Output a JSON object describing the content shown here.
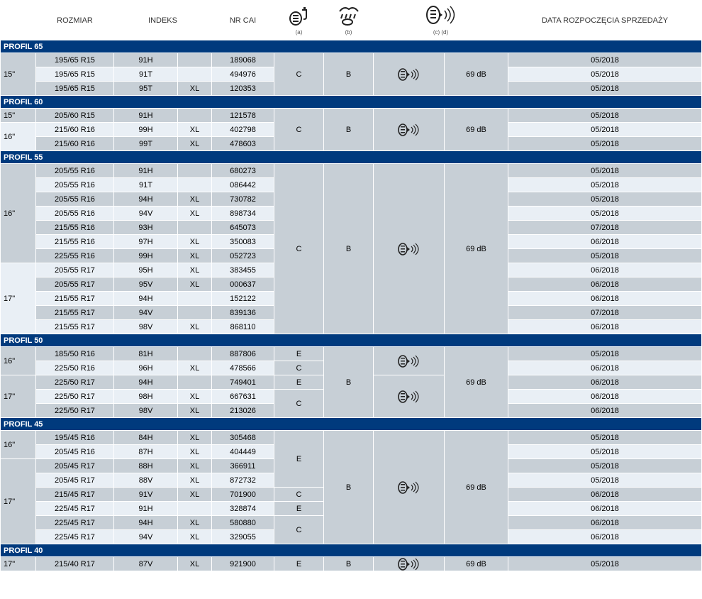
{
  "colors": {
    "section_bg": "#003a7d",
    "light_row": "#e9eff5",
    "dark_row": "#c7cfd6",
    "white": "#ffffff",
    "text": "#000000",
    "icon": "#222222"
  },
  "headers": {
    "rozmiar": "ROZMIAR",
    "indeks": "INDEKS",
    "nr_cai": "NR CAI",
    "fuel_sub": "(a)",
    "wet_sub": "(b)",
    "noise_sub": "(c) (d)",
    "data": "DATA ROZPOCZĘCIA SPRZEDAŻY"
  },
  "sections": [
    {
      "title": "PROFIL 65",
      "fuel": "C",
      "wet": "B",
      "db": "69 dB",
      "rows": [
        {
          "rim": "15\"",
          "size": "195/65 R15",
          "idx": "91H",
          "xl": "",
          "cai": "189068",
          "date": "05/2018",
          "sh": "dk",
          "newrim": true
        },
        {
          "rim": "",
          "size": "195/65 R15",
          "idx": "91T",
          "xl": "",
          "cai": "494976",
          "date": "05/2018",
          "sh": "lt"
        },
        {
          "rim": "",
          "size": "195/65 R15",
          "idx": "95T",
          "xl": "XL",
          "cai": "120353",
          "date": "05/2018",
          "sh": "dk"
        }
      ],
      "fuel_groups": [
        {
          "span": 3,
          "val": "C"
        }
      ],
      "wet_groups": [
        {
          "span": 3,
          "val": "B"
        }
      ],
      "nico_groups": [
        {
          "span": 3
        }
      ],
      "db_groups": [
        {
          "span": 3,
          "val": "69 dB"
        }
      ]
    },
    {
      "title": "PROFIL 60",
      "rows": [
        {
          "rim": "15\"",
          "size": "205/60 R15",
          "idx": "91H",
          "xl": "",
          "cai": "121578",
          "date": "05/2018",
          "sh": "dk",
          "newrim": true
        },
        {
          "rim": "16\"",
          "size": "215/60 R16",
          "idx": "99H",
          "xl": "XL",
          "cai": "402798",
          "date": "05/2018",
          "sh": "lt",
          "newrim": true
        },
        {
          "rim": "",
          "size": "215/60 R16",
          "idx": "99T",
          "xl": "XL",
          "cai": "478603",
          "date": "05/2018",
          "sh": "dk"
        }
      ],
      "fuel_groups": [
        {
          "span": 3,
          "val": "C"
        }
      ],
      "wet_groups": [
        {
          "span": 3,
          "val": "B"
        }
      ],
      "nico_groups": [
        {
          "span": 3
        }
      ],
      "db_groups": [
        {
          "span": 3,
          "val": "69 dB"
        }
      ]
    },
    {
      "title": "PROFIL 55",
      "rows": [
        {
          "rim": "16\"",
          "size": "205/55 R16",
          "idx": "91H",
          "xl": "",
          "cai": "680273",
          "date": "05/2018",
          "sh": "dk",
          "newrim": true
        },
        {
          "rim": "",
          "size": "205/55 R16",
          "idx": "91T",
          "xl": "",
          "cai": "086442",
          "date": "05/2018",
          "sh": "lt"
        },
        {
          "rim": "",
          "size": "205/55 R16",
          "idx": "94H",
          "xl": "XL",
          "cai": "730782",
          "date": "05/2018",
          "sh": "dk"
        },
        {
          "rim": "",
          "size": "205/55 R16",
          "idx": "94V",
          "xl": "XL",
          "cai": "898734",
          "date": "05/2018",
          "sh": "lt"
        },
        {
          "rim": "",
          "size": "215/55 R16",
          "idx": "93H",
          "xl": "",
          "cai": "645073",
          "date": "07/2018",
          "sh": "dk"
        },
        {
          "rim": "",
          "size": "215/55 R16",
          "idx": "97H",
          "xl": "XL",
          "cai": "350083",
          "date": "06/2018",
          "sh": "lt"
        },
        {
          "rim": "",
          "size": "225/55 R16",
          "idx": "99H",
          "xl": "XL",
          "cai": "052723",
          "date": "05/2018",
          "sh": "dk"
        },
        {
          "rim": "17\"",
          "size": "205/55 R17",
          "idx": "95H",
          "xl": "XL",
          "cai": "383455",
          "date": "06/2018",
          "sh": "lt",
          "newrim": true
        },
        {
          "rim": "",
          "size": "205/55 R17",
          "idx": "95V",
          "xl": "XL",
          "cai": "000637",
          "date": "06/2018",
          "sh": "dk"
        },
        {
          "rim": "",
          "size": "215/55 R17",
          "idx": "94H",
          "xl": "",
          "cai": "152122",
          "date": "06/2018",
          "sh": "lt"
        },
        {
          "rim": "",
          "size": "215/55 R17",
          "idx": "94V",
          "xl": "",
          "cai": "839136",
          "date": "07/2018",
          "sh": "dk"
        },
        {
          "rim": "",
          "size": "215/55 R17",
          "idx": "98V",
          "xl": "XL",
          "cai": "868110",
          "date": "06/2018",
          "sh": "lt"
        }
      ],
      "fuel_groups": [
        {
          "span": 12,
          "val": "C"
        }
      ],
      "wet_groups": [
        {
          "span": 12,
          "val": "B"
        }
      ],
      "nico_groups": [
        {
          "span": 12
        }
      ],
      "db_groups": [
        {
          "span": 12,
          "val": "69 dB"
        }
      ]
    },
    {
      "title": "PROFIL 50",
      "rows": [
        {
          "rim": "16\"",
          "size": "185/50 R16",
          "idx": "81H",
          "xl": "",
          "cai": "887806",
          "date": "05/2018",
          "sh": "dk",
          "newrim": true
        },
        {
          "rim": "",
          "size": "225/50 R16",
          "idx": "96H",
          "xl": "XL",
          "cai": "478566",
          "date": "06/2018",
          "sh": "lt"
        },
        {
          "rim": "17\"",
          "size": "225/50 R17",
          "idx": "94H",
          "xl": "",
          "cai": "749401",
          "date": "06/2018",
          "sh": "dk",
          "newrim": true
        },
        {
          "rim": "",
          "size": "225/50 R17",
          "idx": "98H",
          "xl": "XL",
          "cai": "667631",
          "date": "06/2018",
          "sh": "lt"
        },
        {
          "rim": "",
          "size": "225/50 R17",
          "idx": "98V",
          "xl": "XL",
          "cai": "213026",
          "date": "06/2018",
          "sh": "dk"
        }
      ],
      "fuel_groups": [
        {
          "span": 1,
          "val": "E"
        },
        {
          "span": 1,
          "val": "C"
        },
        {
          "span": 1,
          "val": "E"
        },
        {
          "span": 2,
          "val": "C"
        }
      ],
      "wet_groups": [
        {
          "span": 5,
          "val": "B"
        }
      ],
      "nico_groups": [
        {
          "span": 2
        },
        {
          "span": 3
        }
      ],
      "db_groups": [
        {
          "span": 5,
          "val": "69 dB"
        }
      ]
    },
    {
      "title": "PROFIL 45",
      "rows": [
        {
          "rim": "16\"",
          "size": "195/45 R16",
          "idx": "84H",
          "xl": "XL",
          "cai": "305468",
          "date": "05/2018",
          "sh": "dk",
          "newrim": true
        },
        {
          "rim": "",
          "size": "205/45 R16",
          "idx": "87H",
          "xl": "XL",
          "cai": "404449",
          "date": "05/2018",
          "sh": "lt"
        },
        {
          "rim": "17\"",
          "size": "205/45 R17",
          "idx": "88H",
          "xl": "XL",
          "cai": "366911",
          "date": "05/2018",
          "sh": "dk",
          "newrim": true
        },
        {
          "rim": "",
          "size": "205/45 R17",
          "idx": "88V",
          "xl": "XL",
          "cai": "872732",
          "date": "05/2018",
          "sh": "lt"
        },
        {
          "rim": "",
          "size": "215/45 R17",
          "idx": "91V",
          "xl": "XL",
          "cai": "701900",
          "date": "06/2018",
          "sh": "dk"
        },
        {
          "rim": "",
          "size": "225/45 R17",
          "idx": "91H",
          "xl": "",
          "cai": "328874",
          "date": "06/2018",
          "sh": "lt"
        },
        {
          "rim": "",
          "size": "225/45 R17",
          "idx": "94H",
          "xl": "XL",
          "cai": "580880",
          "date": "06/2018",
          "sh": "dk"
        },
        {
          "rim": "",
          "size": "225/45 R17",
          "idx": "94V",
          "xl": "XL",
          "cai": "329055",
          "date": "06/2018",
          "sh": "lt"
        }
      ],
      "fuel_groups": [
        {
          "span": 4,
          "val": "E"
        },
        {
          "span": 1,
          "val": "C"
        },
        {
          "span": 1,
          "val": "E"
        },
        {
          "span": 2,
          "val": "C"
        }
      ],
      "wet_groups": [
        {
          "span": 8,
          "val": "B"
        }
      ],
      "nico_groups": [
        {
          "span": 8
        }
      ],
      "db_groups": [
        {
          "span": 8,
          "val": "69 dB"
        }
      ]
    },
    {
      "title": "PROFIL 40",
      "rows": [
        {
          "rim": "17\"",
          "size": "215/40 R17",
          "idx": "87V",
          "xl": "XL",
          "cai": "921900",
          "date": "05/2018",
          "sh": "dk",
          "newrim": true
        }
      ],
      "fuel_groups": [
        {
          "span": 1,
          "val": "E"
        }
      ],
      "wet_groups": [
        {
          "span": 1,
          "val": "B"
        }
      ],
      "nico_groups": [
        {
          "span": 1
        }
      ],
      "db_groups": [
        {
          "span": 1,
          "val": "69 dB"
        }
      ]
    }
  ]
}
